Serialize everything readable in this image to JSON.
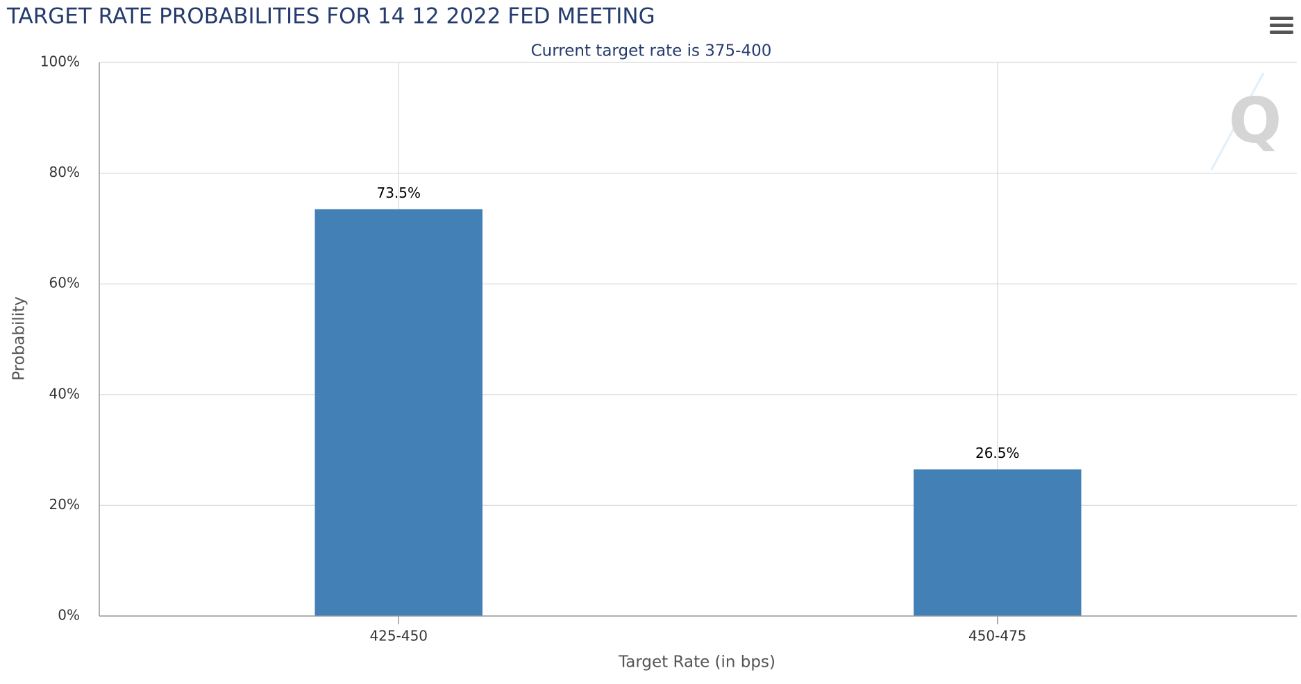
{
  "chart_data": {
    "type": "bar",
    "title": "TARGET RATE PROBABILITIES FOR 14 12 2022 FED MEETING",
    "subtitle": "Current target rate is 375-400",
    "x_label": "Target Rate (in bps)",
    "y_label": "Probability",
    "categories": [
      "425-450",
      "450-475"
    ],
    "values": [
      73.5,
      26.5
    ],
    "value_labels": [
      "73.5%",
      "26.5%"
    ],
    "color": "#4380b5",
    "ylim": [
      0,
      100
    ],
    "yticks": [
      {
        "value": 0,
        "label": "0%"
      },
      {
        "value": 20,
        "label": "20%"
      },
      {
        "value": 40,
        "label": "40%"
      },
      {
        "value": 60,
        "label": "60%"
      },
      {
        "value": 80,
        "label": "80%"
      },
      {
        "value": 100,
        "label": "100%"
      }
    ],
    "grid": true
  }
}
